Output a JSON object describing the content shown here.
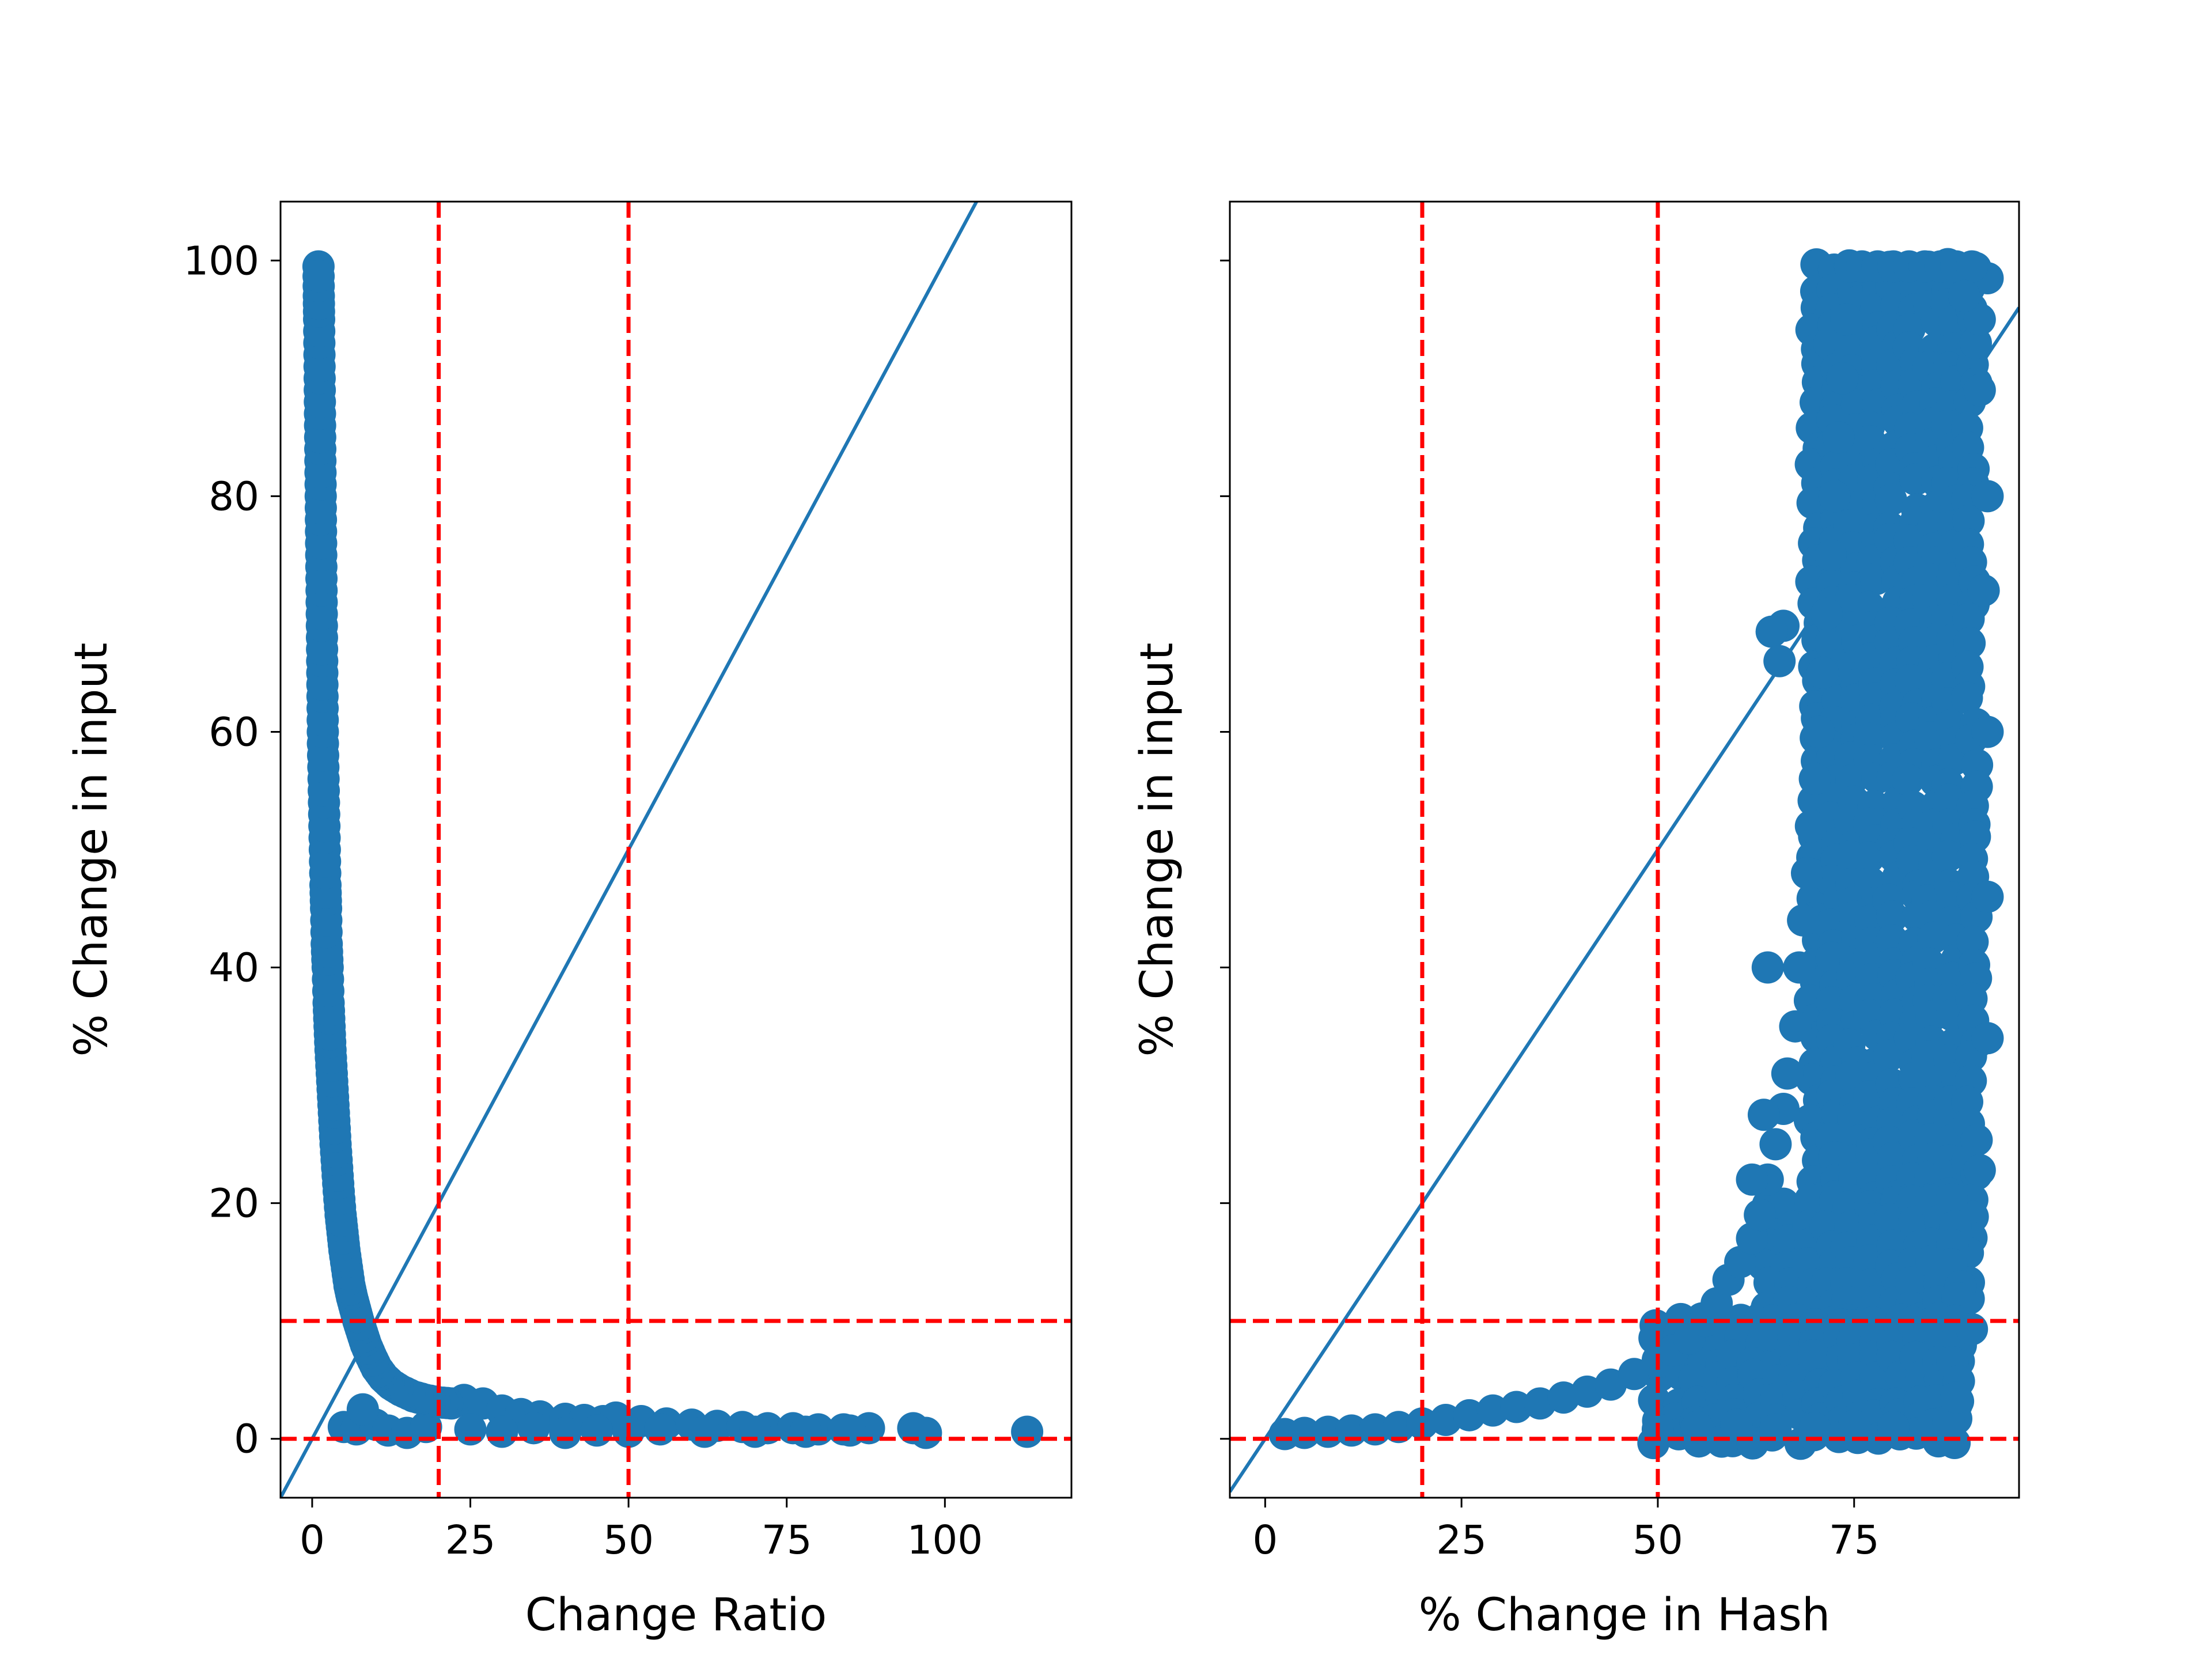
{
  "chart_data": [
    {
      "type": "scatter",
      "title": "",
      "xlabel": "Change Ratio",
      "ylabel": "% Change in input",
      "xlim": [
        -5,
        120
      ],
      "ylim": [
        -5,
        105
      ],
      "xticks": [
        0,
        25,
        50,
        75,
        100
      ],
      "xtick_labels": [
        "0",
        "25",
        "50",
        "75",
        "100"
      ],
      "yticks": [
        0,
        20,
        40,
        60,
        80,
        100
      ],
      "ytick_labels": [
        "0",
        "20",
        "40",
        "60",
        "80",
        "100"
      ],
      "grid": false,
      "marker_color": "#1f77b4",
      "reference_line": {
        "slope": 1,
        "intercept": 0,
        "color": "#1f77b4"
      },
      "vlines": [
        20,
        50
      ],
      "hlines": [
        0,
        10
      ],
      "threshold_color": "#ff0000",
      "points": [
        [
          1,
          99.5
        ],
        [
          1.05,
          97
        ],
        [
          1.1,
          95
        ],
        [
          1.15,
          92
        ],
        [
          1.2,
          89
        ],
        [
          1.25,
          86
        ],
        [
          1.3,
          83
        ],
        [
          1.35,
          80
        ],
        [
          1.4,
          77
        ],
        [
          1.45,
          74
        ],
        [
          1.5,
          71
        ],
        [
          1.55,
          68
        ],
        [
          1.6,
          65
        ],
        [
          1.65,
          62
        ],
        [
          1.7,
          59
        ],
        [
          1.8,
          56
        ],
        [
          1.9,
          53
        ],
        [
          2.0,
          50
        ],
        [
          2.1,
          47
        ],
        [
          2.2,
          45
        ],
        [
          2.3,
          42
        ],
        [
          2.45,
          40
        ],
        [
          2.6,
          37
        ],
        [
          2.75,
          35
        ],
        [
          2.9,
          33
        ],
        [
          3.1,
          31
        ],
        [
          3.3,
          29
        ],
        [
          3.5,
          27
        ],
        [
          3.7,
          25
        ],
        [
          3.95,
          23
        ],
        [
          4.2,
          21
        ],
        [
          4.5,
          19
        ],
        [
          4.8,
          17.5
        ],
        [
          5.1,
          16
        ],
        [
          5.5,
          14.5
        ],
        [
          5.9,
          13
        ],
        [
          6.3,
          12
        ],
        [
          6.8,
          11
        ],
        [
          7.3,
          10
        ],
        [
          7.9,
          9
        ],
        [
          8.5,
          8
        ],
        [
          9.3,
          7
        ],
        [
          10.2,
          6
        ],
        [
          11.3,
          5.2
        ],
        [
          12.5,
          4.6
        ],
        [
          14,
          4.1
        ],
        [
          16,
          3.6
        ],
        [
          18,
          3.3
        ],
        [
          20,
          3.1
        ],
        [
          22,
          3.0
        ],
        [
          24,
          3.3
        ],
        [
          27,
          3.0
        ],
        [
          30,
          2.4
        ],
        [
          33,
          2.1
        ],
        [
          36,
          1.9
        ],
        [
          40,
          1.7
        ],
        [
          43,
          1.6
        ],
        [
          46,
          1.5
        ],
        [
          48,
          1.8
        ],
        [
          52,
          1.5
        ],
        [
          56,
          1.3
        ],
        [
          60,
          1.2
        ],
        [
          64,
          1.1
        ],
        [
          68,
          1.0
        ],
        [
          72,
          0.9
        ],
        [
          76,
          0.9
        ],
        [
          80,
          0.8
        ],
        [
          84,
          0.8
        ],
        [
          88,
          0.9
        ],
        [
          95,
          0.9
        ],
        [
          97,
          0.5
        ],
        [
          113,
          0.6
        ],
        [
          5,
          1
        ],
        [
          7,
          0.8
        ],
        [
          10,
          1.2
        ],
        [
          12,
          0.7
        ],
        [
          15,
          0.5
        ],
        [
          18,
          1
        ],
        [
          25,
          0.8
        ],
        [
          30,
          0.6
        ],
        [
          35,
          0.9
        ],
        [
          40,
          0.5
        ],
        [
          45,
          0.7
        ],
        [
          50,
          0.6
        ],
        [
          55,
          0.8
        ],
        [
          62,
          0.6
        ],
        [
          70,
          0.6
        ],
        [
          78,
          0.6
        ],
        [
          85,
          0.7
        ],
        [
          8,
          2.5
        ]
      ]
    },
    {
      "type": "scatter",
      "title": "",
      "xlabel": "% Change in Hash",
      "ylabel": "% Change in input",
      "xlim": [
        -4.5,
        96
      ],
      "ylim": [
        -5,
        105
      ],
      "xticks": [
        0,
        25,
        50,
        75
      ],
      "xtick_labels": [
        "0",
        "25",
        "50",
        "75"
      ],
      "yticks": [
        0,
        20,
        40,
        60,
        80,
        100
      ],
      "ytick_labels": [],
      "grid": false,
      "marker_color": "#1f77b4",
      "reference_line": {
        "slope": 1,
        "intercept": 0,
        "color": "#1f77b4"
      },
      "vlines": [
        20,
        50
      ],
      "hlines": [
        0,
        10
      ],
      "threshold_color": "#ff0000",
      "points": [
        [
          2.5,
          0.4
        ],
        [
          5,
          0.5
        ],
        [
          8,
          0.6
        ],
        [
          11,
          0.7
        ],
        [
          14,
          0.8
        ],
        [
          17,
          1.0
        ],
        [
          20,
          1.3
        ],
        [
          23,
          1.6
        ],
        [
          26,
          2.0
        ],
        [
          29,
          2.4
        ],
        [
          32,
          2.7
        ],
        [
          35,
          3.0
        ],
        [
          38,
          3.5
        ],
        [
          41,
          4.0
        ],
        [
          44,
          4.6
        ],
        [
          47,
          5.5
        ],
        [
          50,
          6.5
        ],
        [
          52,
          7.5
        ],
        [
          54,
          8.5
        ],
        [
          56,
          10
        ],
        [
          57.5,
          11.5
        ],
        [
          59,
          13.5
        ],
        [
          60.5,
          15
        ],
        [
          62,
          17
        ],
        [
          63,
          19
        ],
        [
          64,
          22
        ],
        [
          65,
          25
        ],
        [
          66,
          28
        ],
        [
          66.5,
          31
        ],
        [
          67.5,
          35
        ],
        [
          68,
          40
        ],
        [
          68.5,
          44
        ],
        [
          69,
          48
        ],
        [
          69.5,
          52
        ],
        [
          70,
          56
        ],
        [
          70.5,
          60
        ],
        [
          71,
          65
        ],
        [
          71.5,
          70
        ],
        [
          72,
          75
        ],
        [
          72.5,
          80
        ],
        [
          73,
          85
        ],
        [
          73.5,
          90
        ],
        [
          74,
          95
        ],
        [
          74.5,
          99.5
        ],
        [
          66,
          69
        ],
        [
          64.5,
          68.5
        ],
        [
          65.5,
          66
        ],
        [
          64,
          40
        ],
        [
          62,
          22
        ],
        [
          63.5,
          27.5
        ],
        [
          50,
          0.8
        ],
        [
          55,
          1.0
        ],
        [
          60,
          1.2
        ],
        [
          65,
          0.8
        ],
        [
          70,
          0.9
        ],
        [
          75,
          1.1
        ],
        [
          80,
          1.0
        ],
        [
          85,
          1.2
        ],
        [
          90,
          9.3
        ],
        [
          87,
          1.5
        ],
        [
          88,
          3.5
        ],
        [
          91,
          22.8
        ],
        [
          92,
          34
        ],
        [
          92,
          46
        ],
        [
          92,
          60
        ],
        [
          91.5,
          72
        ],
        [
          92,
          80
        ],
        [
          91,
          89
        ],
        [
          90.5,
          93
        ],
        [
          92,
          98.5
        ],
        [
          91,
          95
        ],
        [
          76,
          99.5
        ],
        [
          78,
          99.5
        ],
        [
          80,
          99.5
        ],
        [
          82,
          99.5
        ],
        [
          84,
          99.5
        ],
        [
          86,
          99.5
        ],
        [
          88,
          99.5
        ],
        [
          90,
          99.5
        ],
        [
          89,
          97
        ]
      ],
      "dense_regions": [
        {
          "x": [
            70,
            90
          ],
          "y": [
            12,
            99.5
          ]
        },
        {
          "x": [
            64,
            88
          ],
          "y": [
            3,
            20
          ]
        },
        {
          "x": [
            50,
            88
          ],
          "y": [
            0,
            10
          ]
        }
      ]
    }
  ]
}
